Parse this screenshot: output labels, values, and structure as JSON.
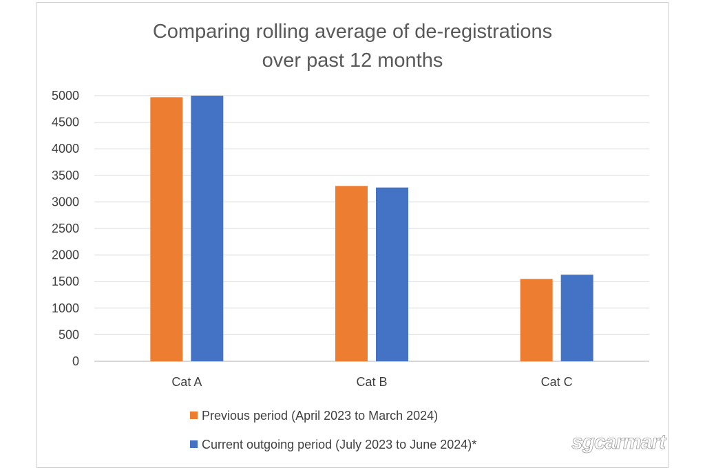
{
  "chart_data": {
    "type": "bar",
    "title_lines": [
      "Comparing rolling average of de-registrations",
      "over past 12 months"
    ],
    "categories": [
      "Cat A",
      "Cat B",
      "Cat C"
    ],
    "series": [
      {
        "name": "Previous period (April 2023 to March 2024)",
        "color": "#ED7D31",
        "values": [
          4970,
          3300,
          1550
        ]
      },
      {
        "name": "Current outgoing period (July 2023 to June 2024)*",
        "color": "#4472C4",
        "values": [
          5000,
          3270,
          1630
        ]
      }
    ],
    "yticks": [
      0,
      500,
      1000,
      1500,
      2000,
      2500,
      3000,
      3500,
      4000,
      4500,
      5000
    ],
    "ylim": [
      0,
      5000
    ],
    "xlabel": "",
    "ylabel": "",
    "grid": true,
    "legend_position": "bottom"
  },
  "watermark": {
    "text": "sgcarmart"
  },
  "colors": {
    "gridline": "#d9d9d9",
    "axis": "#bfbfbf"
  }
}
